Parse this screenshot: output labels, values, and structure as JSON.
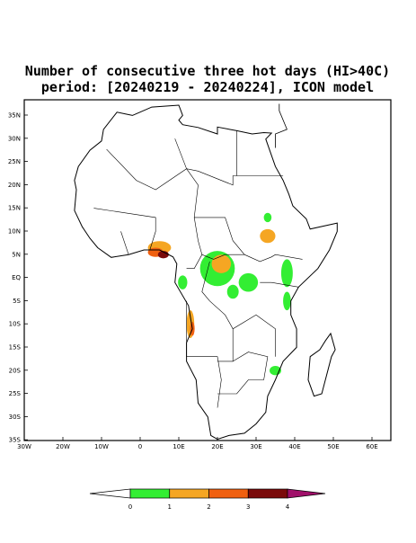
{
  "header": {
    "title": "Number of consecutive three hot days (HI>40C)",
    "subtitle": "period: [20240219 - 20240224], ICON model"
  },
  "map": {
    "lat_labels": [
      "35N",
      "30N",
      "25N",
      "20N",
      "15N",
      "10N",
      "5N",
      "EQ",
      "5S",
      "10S",
      "15S",
      "20S",
      "25S",
      "30S",
      "35S"
    ],
    "lon_labels": [
      "30W",
      "20W",
      "10W",
      "0",
      "10E",
      "20E",
      "30E",
      "40E",
      "50E",
      "60E"
    ]
  },
  "colorbar": {
    "ticks": [
      0,
      1,
      2,
      3,
      4
    ],
    "colors": [
      "#ffffff",
      "#33ee33",
      "#f5a623",
      "#f06010",
      "#7a0a0a",
      "#a0106a"
    ]
  }
}
